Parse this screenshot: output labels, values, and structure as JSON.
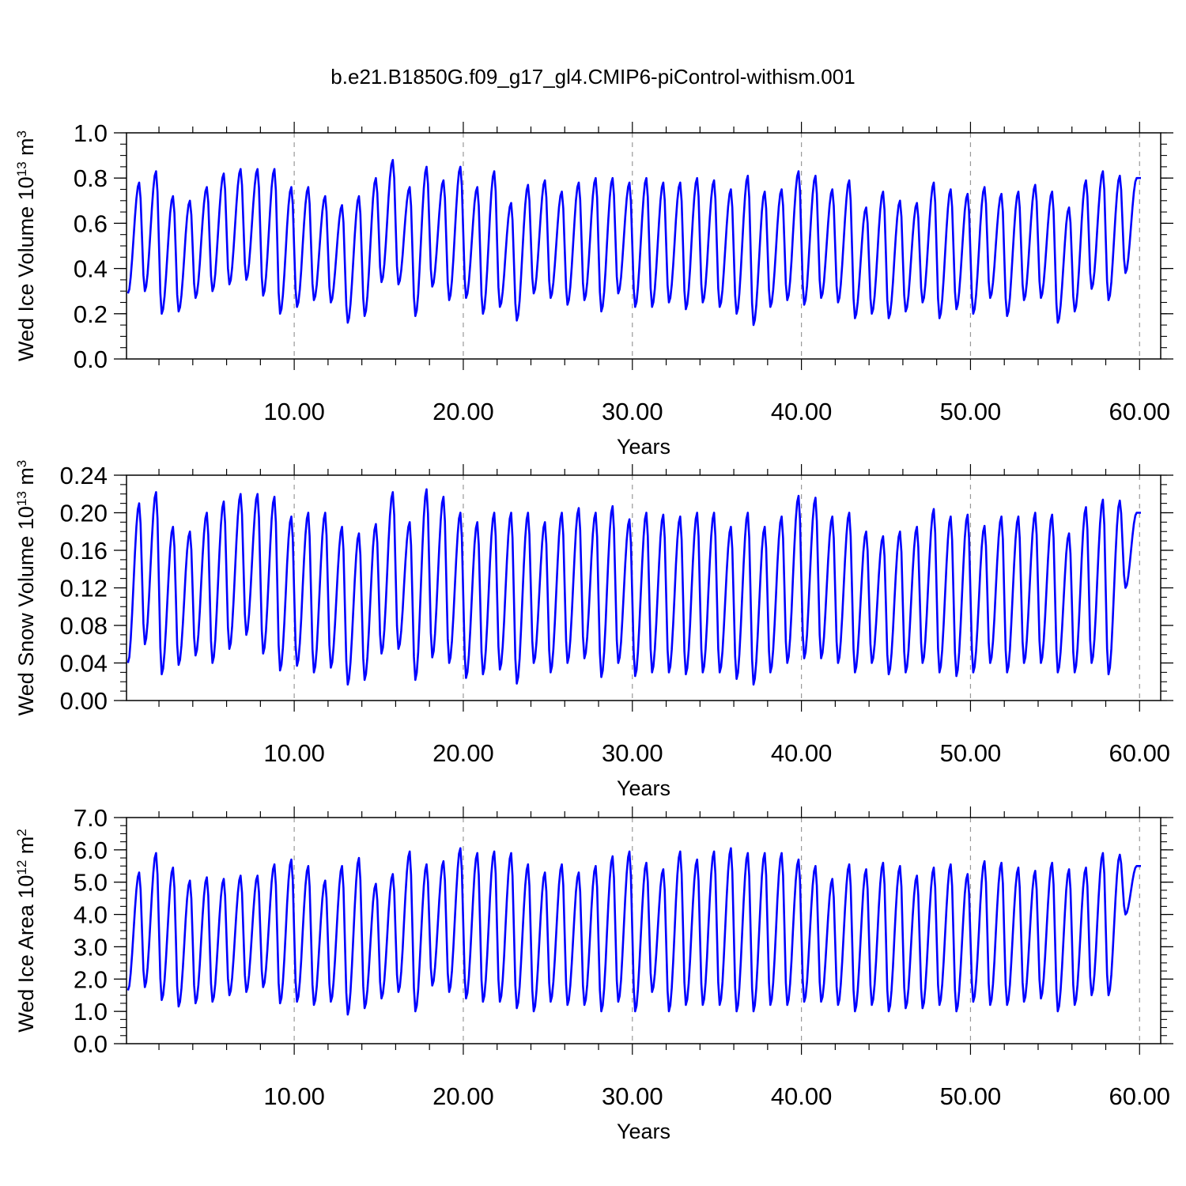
{
  "title": "b.e21.B1850G.f09_g17_gl4.CMIP6-piControl-withism.001",
  "chart_data": [
    {
      "type": "line",
      "ylabel_main": "Wed Ice Volume 10",
      "ylabel_exp": "13",
      "ylabel_unit": " m",
      "ylabel_unit_exp": "3",
      "xlabel": "Years",
      "xlim": [
        0.08,
        61.25
      ],
      "ylim": [
        0,
        1.0
      ],
      "yticks": [
        "0.0",
        "0.2",
        "0.4",
        "0.6",
        "0.8",
        "1.0"
      ],
      "yminor": 0.05,
      "xticks": [
        "10.00",
        "20.00",
        "30.00",
        "40.00",
        "50.00",
        "60.00"
      ],
      "color": "#0000ff",
      "grid_x": true,
      "series": [
        {
          "min": [
            0.29,
            0.3,
            0.2,
            0.21,
            0.27,
            0.3,
            0.33,
            0.35,
            0.28,
            0.2,
            0.23,
            0.26,
            0.25,
            0.16,
            0.19,
            0.34,
            0.33,
            0.19,
            0.32,
            0.26,
            0.27,
            0.2,
            0.23,
            0.17,
            0.29,
            0.27,
            0.24,
            0.26,
            0.21,
            0.29,
            0.23,
            0.23,
            0.25,
            0.22,
            0.25,
            0.23,
            0.2,
            0.15,
            0.23,
            0.26,
            0.24,
            0.27,
            0.25,
            0.18,
            0.2,
            0.18,
            0.21,
            0.25,
            0.18,
            0.22,
            0.2,
            0.27,
            0.19,
            0.26,
            0.27,
            0.16,
            0.21,
            0.31,
            0.26,
            0.38
          ],
          "max": [
            0.78,
            0.83,
            0.72,
            0.7,
            0.76,
            0.82,
            0.84,
            0.84,
            0.84,
            0.76,
            0.76,
            0.72,
            0.68,
            0.72,
            0.8,
            0.88,
            0.76,
            0.85,
            0.79,
            0.85,
            0.76,
            0.83,
            0.69,
            0.77,
            0.79,
            0.74,
            0.78,
            0.8,
            0.8,
            0.78,
            0.8,
            0.78,
            0.78,
            0.8,
            0.79,
            0.75,
            0.81,
            0.74,
            0.75,
            0.83,
            0.81,
            0.75,
            0.79,
            0.67,
            0.74,
            0.7,
            0.69,
            0.78,
            0.75,
            0.73,
            0.76,
            0.73,
            0.74,
            0.77,
            0.74,
            0.67,
            0.79,
            0.83,
            0.81,
            0.8
          ]
        }
      ]
    },
    {
      "type": "line",
      "ylabel_main": "Wed Snow Volume 10",
      "ylabel_exp": "13",
      "ylabel_unit": " m",
      "ylabel_unit_exp": "3",
      "xlabel": "Years",
      "xlim": [
        0.08,
        61.25
      ],
      "ylim": [
        0,
        0.24
      ],
      "yticks": [
        "0.00",
        "0.04",
        "0.08",
        "0.12",
        "0.16",
        "0.20",
        "0.24"
      ],
      "yminor": 0.01,
      "xticks": [
        "10.00",
        "20.00",
        "30.00",
        "40.00",
        "50.00",
        "60.00"
      ],
      "color": "#0000ff",
      "grid_x": true,
      "series": [
        {
          "min": [
            0.04,
            0.06,
            0.028,
            0.038,
            0.048,
            0.04,
            0.055,
            0.07,
            0.05,
            0.032,
            0.037,
            0.03,
            0.035,
            0.017,
            0.022,
            0.05,
            0.055,
            0.022,
            0.046,
            0.04,
            0.024,
            0.028,
            0.033,
            0.018,
            0.04,
            0.03,
            0.04,
            0.045,
            0.025,
            0.04,
            0.026,
            0.03,
            0.03,
            0.028,
            0.03,
            0.03,
            0.023,
            0.017,
            0.03,
            0.04,
            0.045,
            0.045,
            0.04,
            0.03,
            0.04,
            0.028,
            0.03,
            0.04,
            0.03,
            0.026,
            0.03,
            0.04,
            0.03,
            0.04,
            0.04,
            0.03,
            0.03,
            0.04,
            0.028,
            0.12
          ],
          "max": [
            0.21,
            0.222,
            0.185,
            0.18,
            0.2,
            0.212,
            0.22,
            0.22,
            0.217,
            0.196,
            0.2,
            0.2,
            0.185,
            0.178,
            0.188,
            0.222,
            0.19,
            0.225,
            0.217,
            0.2,
            0.19,
            0.2,
            0.2,
            0.2,
            0.19,
            0.2,
            0.205,
            0.2,
            0.207,
            0.193,
            0.2,
            0.198,
            0.196,
            0.2,
            0.2,
            0.185,
            0.2,
            0.185,
            0.196,
            0.218,
            0.216,
            0.196,
            0.2,
            0.18,
            0.175,
            0.18,
            0.185,
            0.204,
            0.196,
            0.198,
            0.186,
            0.196,
            0.196,
            0.2,
            0.198,
            0.178,
            0.206,
            0.214,
            0.213,
            0.2
          ]
        }
      ]
    },
    {
      "type": "line",
      "ylabel_main": "Wed Ice Area 10",
      "ylabel_exp": "12",
      "ylabel_unit": " m",
      "ylabel_unit_exp": "2",
      "xlabel": "Years",
      "xlim": [
        0.08,
        61.25
      ],
      "ylim": [
        0,
        7.0
      ],
      "yticks": [
        "0.0",
        "1.0",
        "2.0",
        "3.0",
        "4.0",
        "5.0",
        "6.0",
        "7.0"
      ],
      "yminor": 0.25,
      "xticks": [
        "10.00",
        "20.00",
        "30.00",
        "40.00",
        "50.00",
        "60.00"
      ],
      "color": "#0000ff",
      "grid_x": true,
      "series": [
        {
          "min": [
            1.65,
            1.75,
            1.35,
            1.15,
            1.25,
            1.3,
            1.5,
            1.6,
            1.75,
            1.25,
            1.3,
            1.2,
            1.3,
            0.9,
            1.1,
            1.4,
            1.6,
            1.0,
            1.8,
            1.6,
            1.4,
            1.3,
            1.3,
            1.1,
            1.0,
            1.3,
            1.2,
            1.2,
            1.0,
            1.3,
            1.0,
            1.6,
            1.0,
            1.2,
            1.2,
            1.2,
            1.0,
            1.0,
            1.2,
            1.2,
            1.3,
            1.3,
            1.2,
            1.0,
            1.2,
            1.0,
            1.1,
            1.1,
            1.2,
            1.0,
            1.3,
            1.2,
            1.2,
            1.3,
            1.4,
            1.0,
            1.2,
            1.5,
            1.5,
            4.0
          ],
          "max": [
            5.3,
            5.9,
            5.45,
            5.05,
            5.15,
            5.1,
            5.2,
            5.2,
            5.55,
            5.7,
            5.5,
            5.05,
            5.5,
            5.75,
            4.95,
            5.25,
            5.95,
            5.55,
            5.65,
            6.05,
            5.9,
            5.95,
            5.9,
            5.55,
            5.3,
            5.55,
            5.3,
            5.5,
            5.8,
            5.95,
            5.6,
            5.4,
            5.95,
            5.7,
            5.95,
            6.05,
            5.9,
            5.9,
            5.9,
            5.7,
            5.5,
            5.1,
            5.55,
            5.4,
            5.6,
            5.5,
            5.2,
            5.45,
            5.55,
            5.25,
            5.65,
            5.6,
            5.45,
            5.35,
            5.6,
            5.4,
            5.45,
            5.9,
            5.85,
            5.5
          ]
        }
      ]
    }
  ]
}
